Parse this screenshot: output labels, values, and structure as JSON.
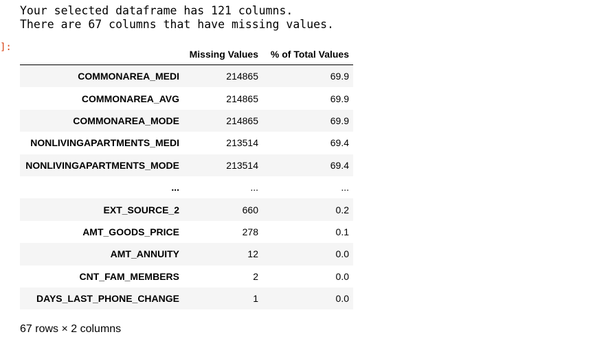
{
  "output": {
    "prompt": "]:",
    "line1": "Your selected dataframe has 121 columns.",
    "line2": "There are 67 columns that have missing values."
  },
  "table": {
    "index_header": "",
    "columns": [
      "Missing Values",
      "% of Total Values"
    ],
    "rows": [
      {
        "name": "COMMONAREA_MEDI",
        "missing": "214865",
        "pct": "69.9"
      },
      {
        "name": "COMMONAREA_AVG",
        "missing": "214865",
        "pct": "69.9"
      },
      {
        "name": "COMMONAREA_MODE",
        "missing": "214865",
        "pct": "69.9"
      },
      {
        "name": "NONLIVINGAPARTMENTS_MEDI",
        "missing": "213514",
        "pct": "69.4"
      },
      {
        "name": "NONLIVINGAPARTMENTS_MODE",
        "missing": "213514",
        "pct": "69.4"
      },
      {
        "name": "...",
        "missing": "...",
        "pct": "..."
      },
      {
        "name": "EXT_SOURCE_2",
        "missing": "660",
        "pct": "0.2"
      },
      {
        "name": "AMT_GOODS_PRICE",
        "missing": "278",
        "pct": "0.1"
      },
      {
        "name": "AMT_ANNUITY",
        "missing": "12",
        "pct": "0.0"
      },
      {
        "name": "CNT_FAM_MEMBERS",
        "missing": "2",
        "pct": "0.0"
      },
      {
        "name": "DAYS_LAST_PHONE_CHANGE",
        "missing": "1",
        "pct": "0.0"
      }
    ]
  },
  "shape_text": "67 rows × 2 columns",
  "colors": {
    "prompt": "#d84315",
    "striped_row": "#f5f5f5"
  }
}
